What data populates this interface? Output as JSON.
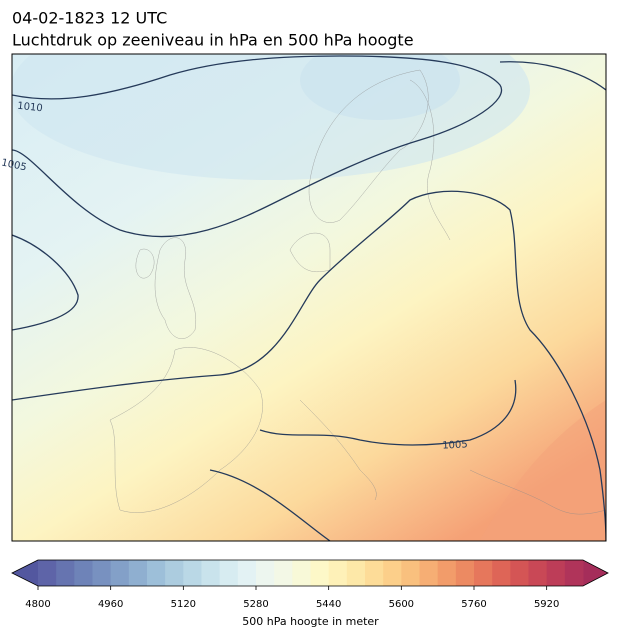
{
  "header": {
    "title": "04-02-1823 12 UTC",
    "subtitle": "Luchtdruk op zeeniveau in hPa en 500 hPa hoogte"
  },
  "map": {
    "contour_labels": [
      "1010",
      "1005",
      "1005"
    ]
  },
  "colorbar": {
    "label": "500 hPa hoogte in meter",
    "lim": [
      4800,
      6000
    ],
    "ticks": [
      4800,
      4960,
      5120,
      5280,
      5440,
      5600,
      5760,
      5920
    ],
    "under_color": "#53579f",
    "over_color": "#a52d5a",
    "colors": [
      "#5e64a8",
      "#6674b0",
      "#6e83b8",
      "#7891c0",
      "#83a0c8",
      "#8fafd0",
      "#9dbfd9",
      "#acccdf",
      "#bad8e6",
      "#c9e3ec",
      "#d7ecf1",
      "#e3f2f4",
      "#edf6ef",
      "#f3f8e6",
      "#f8f9d8",
      "#fdf8c8",
      "#fef1b8",
      "#fde8a8",
      "#fddc98",
      "#fccf8a",
      "#f9c07e",
      "#f6ae74",
      "#f29c6a",
      "#ec8a62",
      "#e6775c",
      "#de6557",
      "#d45555",
      "#c94856",
      "#bd3d58",
      "#b0345a"
    ]
  }
}
